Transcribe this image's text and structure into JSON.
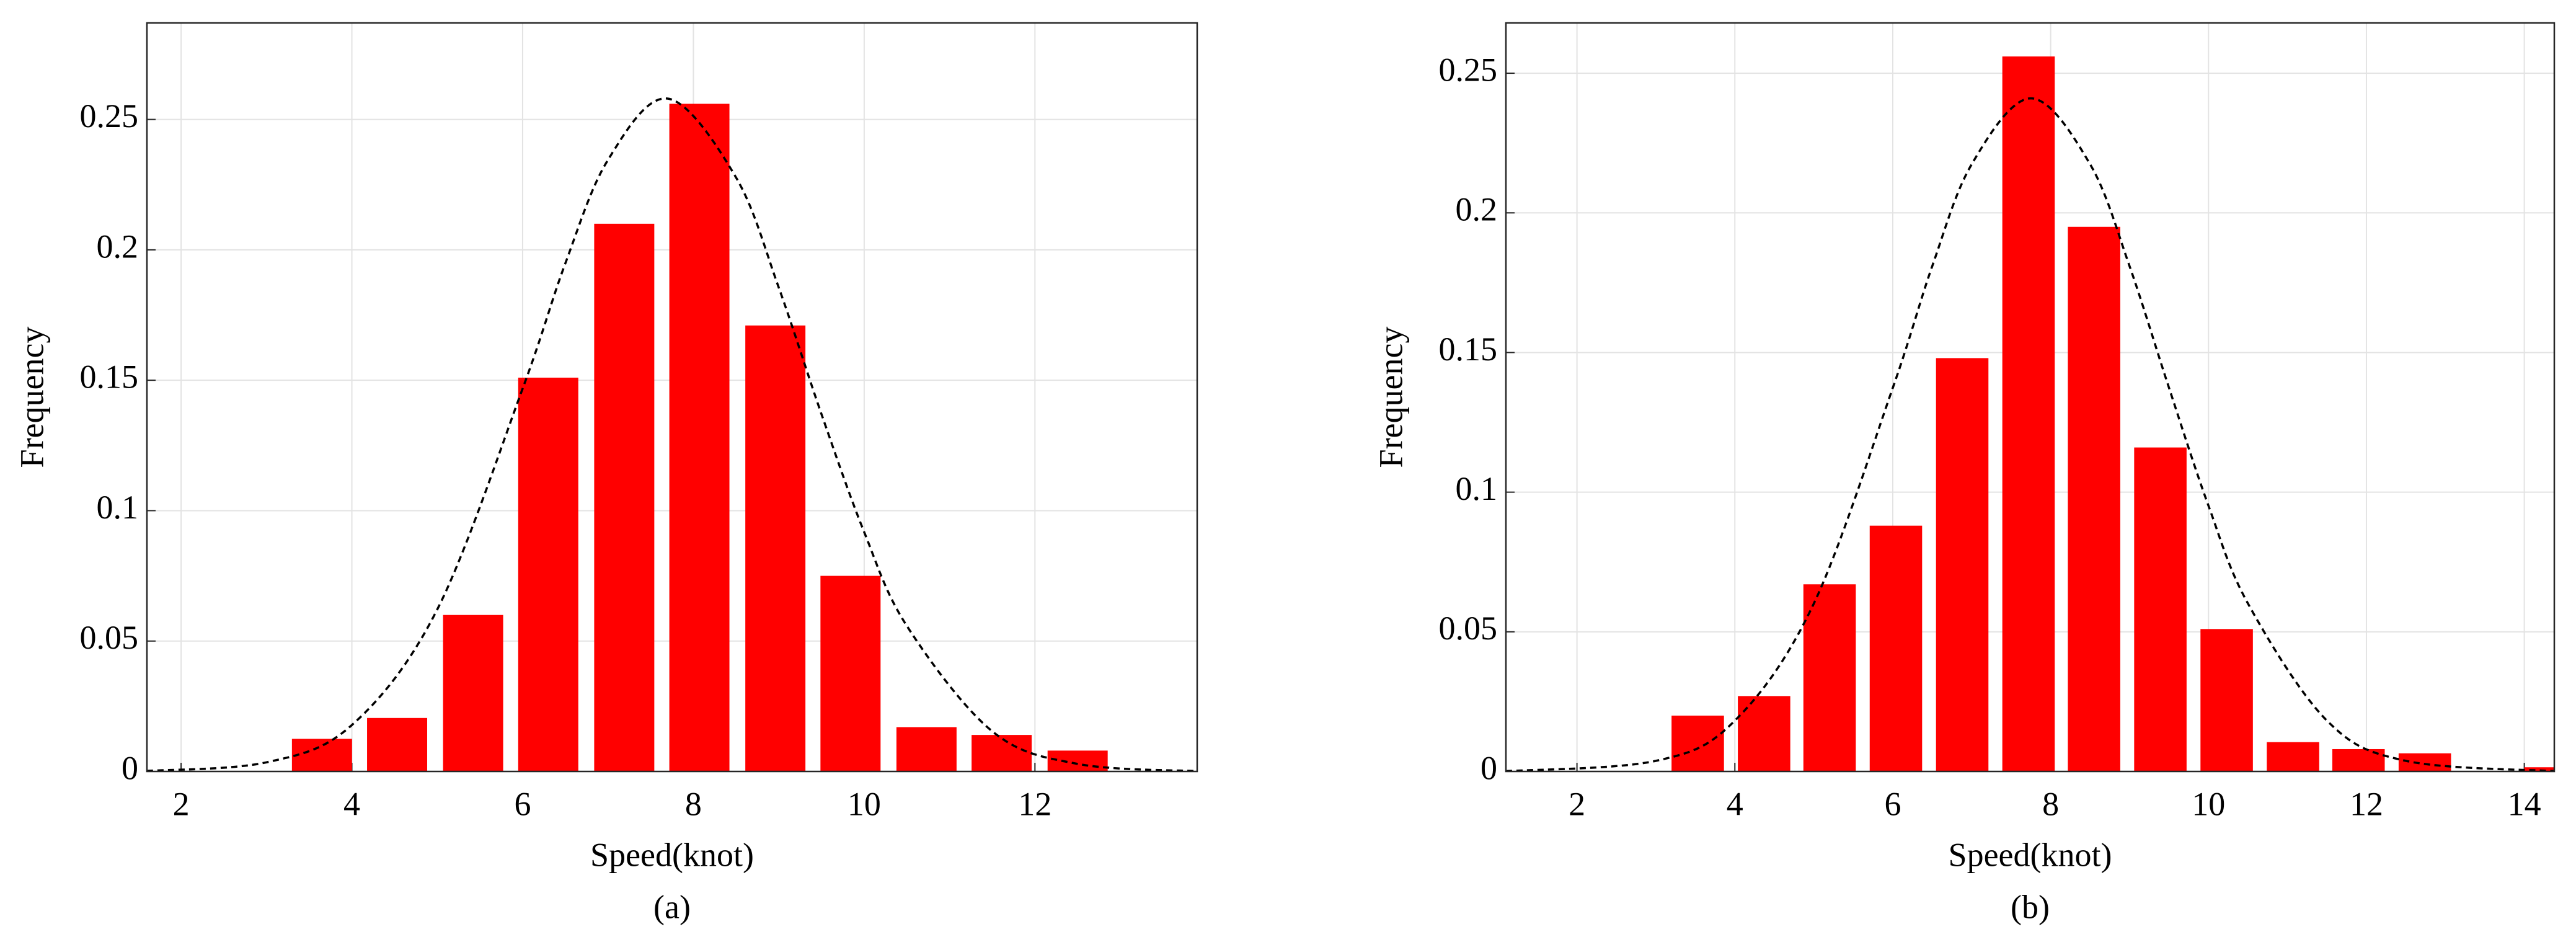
{
  "chart_data": [
    {
      "type": "bar",
      "caption": "(a)",
      "xlabel": "Speed(knot)",
      "ylabel": "Frequency",
      "xlim": [
        1.6,
        13.9
      ],
      "xticks": [
        2,
        4,
        6,
        8,
        10,
        12
      ],
      "ylim": [
        0,
        0.287
      ],
      "yticks": [
        0,
        0.05,
        0.1,
        0.15,
        0.2,
        0.25
      ],
      "grid": true,
      "series": [
        {
          "type": "bar",
          "color": "#ff0000",
          "x": [
            3.65,
            4.53,
            5.42,
            6.3,
            7.19,
            8.07,
            8.96,
            9.84,
            10.73,
            11.61,
            12.5
          ],
          "values": [
            0.0125,
            0.0205,
            0.06,
            0.151,
            0.21,
            0.256,
            0.171,
            0.075,
            0.017,
            0.014,
            0.008
          ]
        },
        {
          "type": "line",
          "color": "#000000",
          "dashed": true,
          "x": [
            1.6,
            3,
            4,
            5,
            6,
            6.5,
            7,
            7.7,
            8.5,
            9,
            9.5,
            10,
            10.5,
            11.5,
            12.5,
            13.9
          ],
          "values": [
            0.0002,
            0.0035,
            0.0178,
            0.0621,
            0.1468,
            0.1948,
            0.2345,
            0.258,
            0.2277,
            0.1855,
            0.137,
            0.0918,
            0.0558,
            0.0154,
            0.0029,
            0.0001
          ]
        }
      ]
    },
    {
      "type": "bar",
      "caption": "(b)",
      "xlabel": "Speed(knot)",
      "ylabel": "Frequency",
      "xlim": [
        1.1,
        14.38
      ],
      "xticks": [
        2,
        4,
        6,
        8,
        10,
        12,
        14
      ],
      "ylim": [
        0,
        0.268
      ],
      "yticks": [
        0,
        0.05,
        0.1,
        0.15,
        0.2,
        0.25
      ],
      "grid": true,
      "series": [
        {
          "type": "bar",
          "color": "#ff0000",
          "x": [
            3.53,
            4.37,
            5.2,
            6.04,
            6.88,
            7.72,
            8.55,
            9.39,
            10.23,
            11.07,
            11.9,
            12.74,
            14.33
          ],
          "values": [
            0.02,
            0.027,
            0.067,
            0.088,
            0.148,
            0.256,
            0.195,
            0.116,
            0.051,
            0.0105,
            0.008,
            0.0065,
            0.0015
          ]
        },
        {
          "type": "line",
          "color": "#000000",
          "dashed": true,
          "x": [
            1.1,
            3,
            4,
            5,
            6,
            6.5,
            7,
            7.75,
            8.5,
            9,
            9.5,
            10,
            10.5,
            11.5,
            12.5,
            14.38
          ],
          "values": [
            0.0001,
            0.0038,
            0.0182,
            0.0601,
            0.1373,
            0.1809,
            0.2174,
            0.241,
            0.2174,
            0.1809,
            0.1373,
            0.0951,
            0.0601,
            0.0182,
            0.0038,
            0.0001
          ]
        }
      ]
    }
  ]
}
